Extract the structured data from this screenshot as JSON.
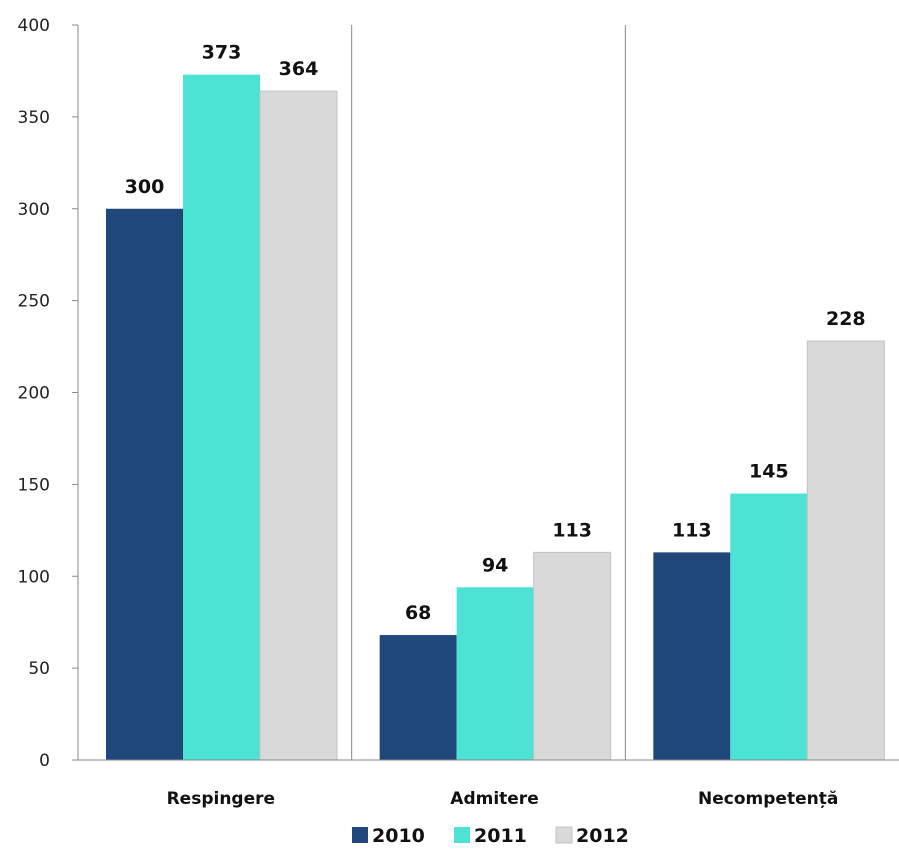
{
  "chart_data": {
    "type": "bar",
    "categories": [
      "Respingere",
      "Admitere",
      "Necompetență"
    ],
    "series": [
      {
        "name": "2010",
        "values": [
          300,
          68,
          113
        ],
        "color": "#1f477a"
      },
      {
        "name": "2011",
        "values": [
          373,
          94,
          145
        ],
        "color": "#4de3d4"
      },
      {
        "name": "2012",
        "values": [
          364,
          113,
          228
        ],
        "color": "#d9d9d9"
      }
    ],
    "ylim": [
      0,
      400
    ],
    "yticks": [
      0,
      50,
      100,
      150,
      200,
      250,
      300,
      350,
      400
    ],
    "grid": false,
    "category_separators": true,
    "data_labels": true,
    "legend_position": "bottom"
  }
}
